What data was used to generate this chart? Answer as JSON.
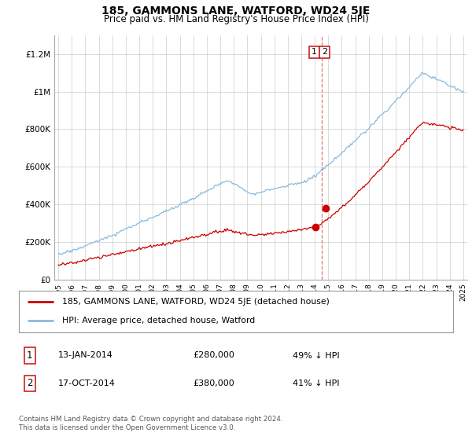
{
  "title": "185, GAMMONS LANE, WATFORD, WD24 5JE",
  "subtitle": "Price paid vs. HM Land Registry's House Price Index (HPI)",
  "ylabel_ticks": [
    "£0",
    "£200K",
    "£400K",
    "£600K",
    "£800K",
    "£1M",
    "£1.2M"
  ],
  "ytick_values": [
    0,
    200000,
    400000,
    600000,
    800000,
    1000000,
    1200000
  ],
  "ylim": [
    0,
    1300000
  ],
  "hpi_color": "#88bbdd",
  "price_color": "#cc0000",
  "vline_color": "#dd6666",
  "t1_x": 2014.04,
  "t1_y": 280000,
  "t2_x": 2014.79,
  "t2_y": 380000,
  "vline_x": 2014.5,
  "legend_property": "185, GAMMONS LANE, WATFORD, WD24 5JE (detached house)",
  "legend_hpi": "HPI: Average price, detached house, Watford",
  "footer": "Contains HM Land Registry data © Crown copyright and database right 2024.\nThis data is licensed under the Open Government Licence v3.0.",
  "background_color": "#ffffff",
  "grid_color": "#cccccc",
  "xlim_left": 1994.7,
  "xlim_right": 2025.3
}
